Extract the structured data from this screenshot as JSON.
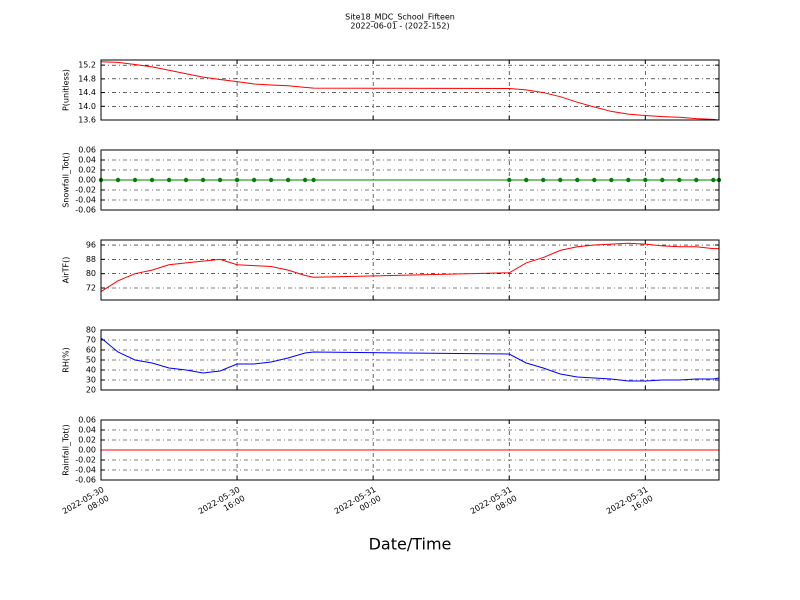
{
  "title": "Site18_MDC_School_Fifteen",
  "subtitle": "2022-06-01 - (2022-152)",
  "xlabel": "Date/Time",
  "x": [
    "2022-05-30 08:00",
    "2022-05-30 09:00",
    "2022-05-30 10:00",
    "2022-05-30 11:00",
    "2022-05-30 12:00",
    "2022-05-30 13:00",
    "2022-05-30 14:00",
    "2022-05-30 15:00",
    "2022-05-30 16:00",
    "2022-05-30 17:00",
    "2022-05-30 18:00",
    "2022-05-30 19:00",
    "2022-05-30 20:00",
    "2022-05-30 20:30",
    "2022-05-31 08:00",
    "2022-05-31 09:00",
    "2022-05-31 10:00",
    "2022-05-31 11:00",
    "2022-05-31 12:00",
    "2022-05-31 13:00",
    "2022-05-31 14:00",
    "2022-05-31 15:00",
    "2022-05-31 16:00",
    "2022-05-31 17:00",
    "2022-05-31 18:00",
    "2022-05-31 19:00",
    "2022-05-31 20:00",
    "2022-05-31 20:20"
  ],
  "xlim": [
    "2022-05-30 08:00",
    "2022-05-31 20:20"
  ],
  "xticks": [
    "2022-05-30 08:00",
    "2022-05-30 16:00",
    "2022-05-31 00:00",
    "2022-05-31 08:00",
    "2022-05-31 16:00"
  ],
  "chart_data": [
    {
      "type": "line",
      "ylabel": "P(unitless)",
      "ylim": [
        13.6,
        15.35
      ],
      "grid": true,
      "yticks": [
        13.6,
        {
          "value": 14,
          "label": "14.0"
        },
        14.4,
        14.8,
        15.2
      ],
      "series": [
        {
          "color": "#ff0000",
          "values": [
            15.3,
            15.28,
            15.22,
            15.15,
            15.05,
            14.95,
            14.85,
            14.78,
            14.72,
            14.65,
            14.62,
            14.6,
            14.55,
            14.53,
            14.52,
            14.48,
            14.4,
            14.28,
            14.12,
            13.98,
            13.85,
            13.77,
            13.73,
            13.7,
            13.68,
            13.64,
            13.62,
            13.6
          ]
        }
      ]
    },
    {
      "type": "line",
      "ylabel": "Snowfall_Tot()",
      "ylim": [
        -0.06,
        0.06
      ],
      "grid": true,
      "yticks": [
        -0.06,
        -0.04,
        -0.02,
        {
          "value": 0,
          "label": "0.00"
        },
        0.02,
        0.04,
        0.06
      ],
      "series": [
        {
          "color": "#008000",
          "marker": "o",
          "values": [
            0,
            0,
            0,
            0,
            0,
            0,
            0,
            0,
            0,
            0,
            0,
            0,
            0,
            0,
            0,
            0,
            0,
            0,
            0,
            0,
            0,
            0,
            0,
            0,
            0,
            0,
            0,
            0
          ]
        }
      ]
    },
    {
      "type": "line",
      "ylabel": "AirTF()",
      "ylim": [
        65.3,
        98.8
      ],
      "grid": true,
      "yticks": [
        72,
        80,
        88,
        96
      ],
      "series": [
        {
          "color": "#ff0000",
          "values": [
            70,
            76,
            80,
            82,
            85,
            86,
            87,
            88,
            85,
            84.5,
            84,
            82,
            79,
            78,
            80.5,
            86,
            89,
            93,
            95,
            96,
            96.5,
            97,
            96.5,
            95.5,
            95,
            95,
            94,
            94
          ]
        }
      ]
    },
    {
      "type": "line",
      "ylabel": "RH(%)",
      "ylim": [
        20,
        80
      ],
      "grid": true,
      "yticks": [
        20,
        30,
        40,
        50,
        60,
        70,
        80
      ],
      "series": [
        {
          "color": "#0000ff",
          "values": [
            72,
            58,
            50,
            47,
            42,
            40,
            37,
            39,
            46,
            46,
            48,
            52,
            57,
            58,
            56,
            47,
            42,
            36,
            33,
            32,
            31,
            29,
            29,
            30,
            30,
            31,
            31,
            32
          ]
        }
      ]
    },
    {
      "type": "line",
      "ylabel": "Rainfall_Tot()",
      "ylim": [
        -0.06,
        0.06
      ],
      "grid": true,
      "yticks": [
        -0.06,
        -0.04,
        -0.02,
        {
          "value": 0,
          "label": "0.00"
        },
        0.02,
        0.04,
        0.06
      ],
      "series": [
        {
          "color": "#ff0000",
          "values": [
            0,
            0,
            0,
            0,
            0,
            0,
            0,
            0,
            0,
            0,
            0,
            0,
            0,
            0,
            0,
            0,
            0,
            0,
            0,
            0,
            0,
            0,
            0,
            0,
            0,
            0,
            0,
            0
          ]
        }
      ]
    }
  ]
}
